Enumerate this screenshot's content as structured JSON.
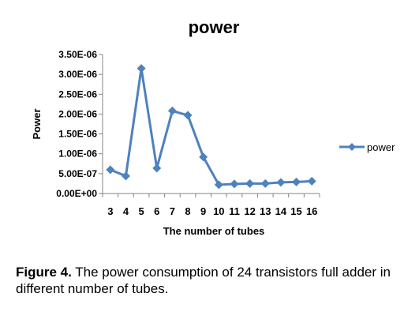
{
  "chart_data": {
    "type": "line",
    "title": "power",
    "xlabel": "The number of tubes",
    "ylabel": "Power",
    "x": [
      "3",
      "4",
      "5",
      "6",
      "7",
      "8",
      "9",
      "10",
      "11",
      "12",
      "13",
      "14",
      "15",
      "16"
    ],
    "series": [
      {
        "name": "power",
        "color": "#4f81bd",
        "values": [
          6e-07,
          4.4e-07,
          3.15e-06,
          6.4e-07,
          2.08e-06,
          1.97e-06,
          9.2e-07,
          2.2e-07,
          2.4e-07,
          2.5e-07,
          2.5e-07,
          2.8e-07,
          2.9e-07,
          3.1e-07
        ]
      }
    ],
    "ylim": [
      0,
      3.5e-06
    ],
    "yticks": [
      0,
      5e-07,
      1e-06,
      1.5e-06,
      2e-06,
      2.5e-06,
      3e-06,
      3.5e-06
    ],
    "ytick_labels": [
      "0.00E+00",
      "5.00E-07",
      "1.00E-06",
      "1.50E-06",
      "2.00E-06",
      "2.50E-06",
      "3.00E-06",
      "3.50E-06"
    ],
    "grid": false,
    "legend_position": "right",
    "marker": "diamond"
  },
  "caption": {
    "label": "Figure 4.",
    "text": " The power consumption of 24 transistors full adder in different number of tubes."
  }
}
